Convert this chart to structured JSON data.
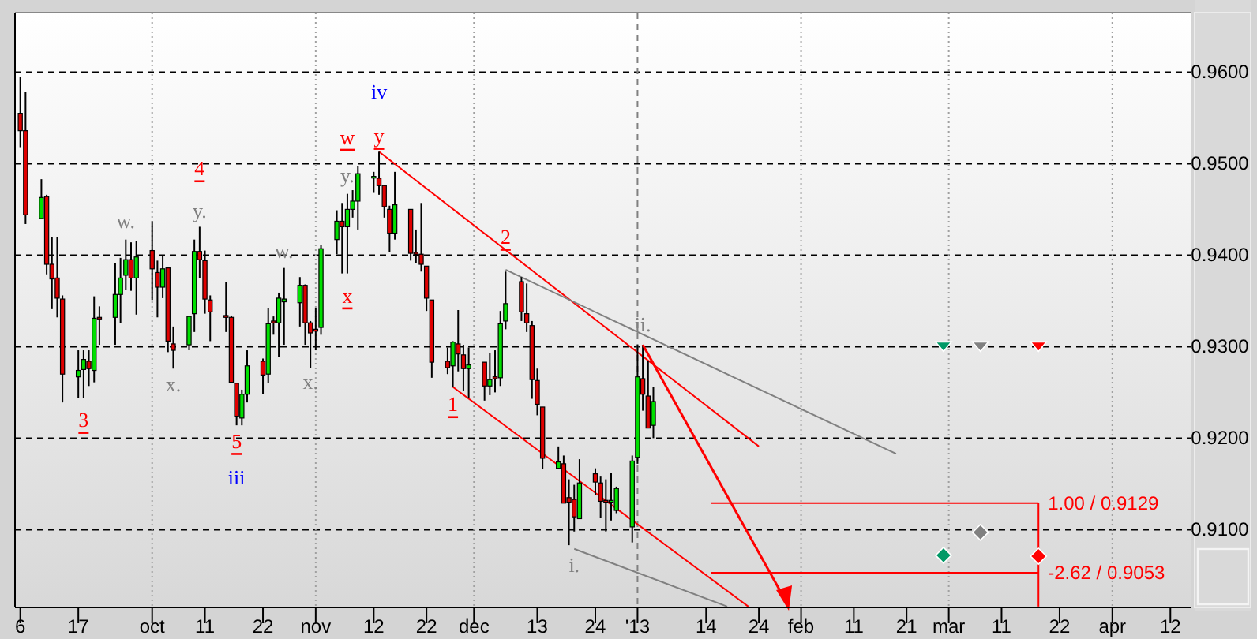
{
  "chart_data": {
    "type": "candlestick",
    "x": [
      "2012-09-06",
      "2012-09-07",
      "2012-09-10",
      "2012-09-11",
      "2012-09-12",
      "2012-09-13",
      "2012-09-14",
      "2012-09-17",
      "2012-09-18",
      "2012-09-19",
      "2012-09-20",
      "2012-09-21",
      "2012-09-24",
      "2012-09-25",
      "2012-09-26",
      "2012-09-27",
      "2012-09-28",
      "2012-10-01",
      "2012-10-02",
      "2012-10-03",
      "2012-10-04",
      "2012-10-05",
      "2012-10-08",
      "2012-10-09",
      "2012-10-10",
      "2012-10-11",
      "2012-10-12",
      "2012-10-15",
      "2012-10-16",
      "2012-10-17",
      "2012-10-18",
      "2012-10-19",
      "2012-10-22",
      "2012-10-23",
      "2012-10-24",
      "2012-10-25",
      "2012-10-26",
      "2012-10-29",
      "2012-10-30",
      "2012-10-31",
      "2012-11-01",
      "2012-11-02",
      "2012-11-05",
      "2012-11-06",
      "2012-11-07",
      "2012-11-08",
      "2012-11-09",
      "2012-11-12",
      "2012-11-13",
      "2012-11-14",
      "2012-11-15",
      "2012-11-16",
      "2012-11-19",
      "2012-11-20",
      "2012-11-21",
      "2012-11-22",
      "2012-11-23",
      "2012-11-26",
      "2012-11-27",
      "2012-11-28",
      "2012-11-29",
      "2012-11-30",
      "2012-12-03",
      "2012-12-04",
      "2012-12-05",
      "2012-12-06",
      "2012-12-07",
      "2012-12-10",
      "2012-12-11",
      "2012-12-12",
      "2012-12-13",
      "2012-12-14",
      "2012-12-17",
      "2012-12-18",
      "2012-12-19",
      "2012-12-20",
      "2012-12-21",
      "2012-12-24",
      "2012-12-25",
      "2012-12-26",
      "2012-12-27",
      "2012-12-28",
      "2012-12-31",
      "2013-01-01",
      "2013-01-02",
      "2013-01-03",
      "2013-01-04"
    ],
    "ohlc": [
      [
        0.9555,
        0.9595,
        0.9518,
        0.9536
      ],
      [
        0.9536,
        0.9578,
        0.9434,
        0.9444
      ],
      [
        0.944,
        0.9483,
        0.944,
        0.9463
      ],
      [
        0.9464,
        0.9466,
        0.9379,
        0.939
      ],
      [
        0.939,
        0.942,
        0.9341,
        0.9374
      ],
      [
        0.9375,
        0.942,
        0.9332,
        0.9353
      ],
      [
        0.9352,
        0.9356,
        0.9239,
        0.927
      ],
      [
        0.9267,
        0.9296,
        0.9244,
        0.9274
      ],
      [
        0.9275,
        0.9296,
        0.9244,
        0.9286
      ],
      [
        0.9284,
        0.9296,
        0.9257,
        0.9276
      ],
      [
        0.9274,
        0.9355,
        0.9261,
        0.9331
      ],
      [
        0.9332,
        0.9344,
        0.9302,
        0.9331
      ],
      [
        0.9332,
        0.9391,
        0.9302,
        0.9357
      ],
      [
        0.9357,
        0.9397,
        0.9326,
        0.9375
      ],
      [
        0.9378,
        0.9417,
        0.9362,
        0.9395
      ],
      [
        0.9395,
        0.9414,
        0.9361,
        0.9375
      ],
      [
        0.9375,
        0.9415,
        0.9335,
        0.9398
      ],
      [
        0.9405,
        0.9437,
        0.9351,
        0.9385
      ],
      [
        0.9381,
        0.9394,
        0.9332,
        0.9365
      ],
      [
        0.9365,
        0.9399,
        0.9353,
        0.9385
      ],
      [
        0.9386,
        0.9386,
        0.9294,
        0.9306
      ],
      [
        0.9303,
        0.9322,
        0.9276,
        0.9296
      ],
      [
        0.9302,
        0.9334,
        0.9296,
        0.9333
      ],
      [
        0.9336,
        0.9417,
        0.9316,
        0.9404
      ],
      [
        0.9404,
        0.9431,
        0.9375,
        0.9395
      ],
      [
        0.9394,
        0.9405,
        0.9336,
        0.9352
      ],
      [
        0.9351,
        0.9356,
        0.9306,
        0.9338
      ],
      [
        0.9334,
        0.9371,
        0.9316,
        0.9332
      ],
      [
        0.9332,
        0.9334,
        0.9261,
        0.9261
      ],
      [
        0.926,
        0.926,
        0.9214,
        0.9224
      ],
      [
        0.9222,
        0.9253,
        0.9214,
        0.9248
      ],
      [
        0.9248,
        0.9296,
        0.9239,
        0.9279
      ],
      [
        0.9284,
        0.9287,
        0.9248,
        0.9269
      ],
      [
        0.927,
        0.9342,
        0.926,
        0.9325
      ],
      [
        0.9328,
        0.9333,
        0.9313,
        0.9326
      ],
      [
        0.9326,
        0.9359,
        0.9289,
        0.9353
      ],
      [
        0.9349,
        0.9386,
        0.9302,
        0.9352
      ],
      [
        0.9348,
        0.9376,
        0.9322,
        0.9367
      ],
      [
        0.9367,
        0.9368,
        0.9302,
        0.9326
      ],
      [
        0.9326,
        0.9328,
        0.9277,
        0.9315
      ],
      [
        0.9319,
        0.9342,
        0.9296,
        0.9317
      ],
      [
        0.9321,
        0.9411,
        0.9313,
        0.9407
      ],
      [
        0.9417,
        0.9449,
        0.9401,
        0.9437
      ],
      [
        0.9437,
        0.9457,
        0.938,
        0.9431
      ],
      [
        0.9431,
        0.9467,
        0.938,
        0.945
      ],
      [
        0.945,
        0.9471,
        0.9441,
        0.9459
      ],
      [
        0.9459,
        0.9497,
        0.9428,
        0.9489
      ],
      [
        0.9485,
        0.9491,
        0.9468,
        0.9486
      ],
      [
        0.9484,
        0.9513,
        0.9466,
        0.9476
      ],
      [
        0.9476,
        0.9476,
        0.9441,
        0.9453
      ],
      [
        0.945,
        0.9454,
        0.9403,
        0.9424
      ],
      [
        0.9424,
        0.9491,
        0.9417,
        0.9455
      ],
      [
        0.945,
        0.945,
        0.9394,
        0.9402
      ],
      [
        0.9403,
        0.9428,
        0.9391,
        0.9401
      ],
      [
        0.9401,
        0.9457,
        0.9382,
        0.939
      ],
      [
        0.9388,
        0.9388,
        0.9339,
        0.9353
      ],
      [
        0.9351,
        0.9351,
        0.9266,
        0.9283
      ],
      [
        0.9284,
        0.9299,
        0.927,
        0.9277
      ],
      [
        0.9279,
        0.9306,
        0.9256,
        0.9305
      ],
      [
        0.9303,
        0.934,
        0.9273,
        0.9292
      ],
      [
        0.9291,
        0.9302,
        0.9252,
        0.9276
      ],
      [
        0.9276,
        0.9299,
        0.9244,
        0.928
      ],
      [
        0.9283,
        0.9283,
        0.9241,
        0.9257
      ],
      [
        0.9257,
        0.9293,
        0.9247,
        0.9264
      ],
      [
        0.9267,
        0.9296,
        0.925,
        0.9265
      ],
      [
        0.9266,
        0.9339,
        0.9257,
        0.9325
      ],
      [
        0.9328,
        0.9382,
        0.9319,
        0.9347
      ],
      [
        0.9371,
        0.9376,
        0.9328,
        0.9338
      ],
      [
        0.9336,
        0.9369,
        0.9316,
        0.9326
      ],
      [
        0.9323,
        0.9328,
        0.9243,
        0.9264
      ],
      [
        0.9263,
        0.9276,
        0.9225,
        0.9237
      ],
      [
        0.9234,
        0.9234,
        0.9166,
        0.9178
      ],
      [
        0.9167,
        0.9191,
        0.9167,
        0.9174
      ],
      [
        0.9172,
        0.9181,
        0.9129,
        0.9129
      ],
      [
        0.9135,
        0.9155,
        0.9083,
        0.913
      ],
      [
        0.9133,
        0.9149,
        0.9098,
        0.9114
      ],
      [
        0.9112,
        0.9177,
        0.9112,
        0.9151
      ],
      [
        0.9161,
        0.9167,
        0.9138,
        0.9152
      ],
      [
        0.9151,
        0.9158,
        0.9113,
        0.9131
      ],
      [
        0.9132,
        0.9155,
        0.9098,
        0.913
      ],
      [
        0.913,
        0.9162,
        0.911,
        0.9132
      ],
      [
        0.9121,
        0.9147,
        0.9118,
        0.9145
      ],
      [
        0.9103,
        0.9181,
        0.9086,
        0.9175
      ],
      [
        0.9179,
        0.9302,
        0.9172,
        0.9267
      ],
      [
        0.9265,
        0.9302,
        0.923,
        0.9248
      ],
      [
        0.9246,
        0.9284,
        0.9211,
        0.9211
      ],
      [
        0.9214,
        0.9256,
        0.92,
        0.924
      ]
    ],
    "series": [
      {
        "type": "line",
        "color": "#ff0000",
        "x": [
          "2012-11-13",
          "2013-01-24"
        ],
        "values": [
          0.9513,
          0.9191
        ]
      },
      {
        "type": "line",
        "color": "#ff0000",
        "x": [
          "2012-11-27",
          "2013-01-22"
        ],
        "values": [
          0.9256,
          0.9016
        ]
      },
      {
        "type": "line",
        "color": "#808080",
        "x": [
          "2012-12-07",
          "2013-02-19"
        ],
        "values": [
          0.9384,
          0.9183
        ]
      },
      {
        "type": "line",
        "color": "#808080",
        "x": [
          "2012-12-20",
          "2013-01-18"
        ],
        "values": [
          0.9079,
          0.9016
        ]
      },
      {
        "type": "line",
        "color": "#ff0000",
        "x": [
          "2013-01-15",
          "2013-03-18"
        ],
        "values": [
          0.9129,
          0.9129
        ]
      },
      {
        "type": "line",
        "color": "#ff0000",
        "x": [
          "2013-01-15",
          "2013-03-18"
        ],
        "values": [
          0.9053,
          0.9053
        ]
      },
      {
        "type": "line",
        "color": "#ff0000",
        "x": [
          "2013-03-18",
          "2013-03-18"
        ],
        "values": [
          0.9129,
          0.9016
        ]
      },
      {
        "type": "scatter",
        "marker": "triangle",
        "x": [
          "2013-02-28",
          "2013-03-07",
          "2013-03-18"
        ],
        "values": [
          0.93,
          0.93,
          0.93
        ],
        "colors": [
          "#009966",
          "#808080",
          "#ff0000"
        ]
      },
      {
        "type": "scatter",
        "marker": "diamond",
        "x": [
          "2013-02-28",
          "2013-03-07",
          "2013-03-18"
        ],
        "values": [
          0.9072,
          0.9097,
          0.9071
        ],
        "colors": [
          "#009966",
          "#808080",
          "#ff0000"
        ]
      }
    ],
    "annotations": [
      "3",
      "4",
      "5",
      "iii",
      "w.",
      "y.",
      "x.",
      "w.",
      "x.",
      "y.",
      "x",
      "w",
      "y",
      "iv",
      "1",
      "2",
      "i.",
      "ii.",
      {
        "text": "1.00 / 0.9129",
        "x": "2013-03-18",
        "y": 0.9129
      },
      {
        "text": "-2.62 / 0.9053",
        "x": "2013-03-18",
        "y": 0.9053
      }
    ],
    "xlim": [
      "2012-09-05",
      "2013-04-16"
    ],
    "xticks": [
      {
        "value": "2012-09-06",
        "label": "6"
      },
      {
        "value": "2012-09-17",
        "label": "17"
      },
      {
        "value": "2012-10-01",
        "label": "oct"
      },
      {
        "value": "2012-10-11",
        "label": "11"
      },
      {
        "value": "2012-10-22",
        "label": "22"
      },
      {
        "value": "2012-11-01",
        "label": "nov"
      },
      {
        "value": "2012-11-12",
        "label": "12"
      },
      {
        "value": "2012-11-22",
        "label": "22"
      },
      {
        "value": "2012-12-01",
        "label": "dec"
      },
      {
        "value": "2012-12-13",
        "label": "13"
      },
      {
        "value": "2012-12-24",
        "label": "24"
      },
      {
        "value": "2013-01-01",
        "label": "'13"
      },
      {
        "value": "2013-01-14",
        "label": "14"
      },
      {
        "value": "2013-01-24",
        "label": "24"
      },
      {
        "value": "2013-02-01",
        "label": "feb"
      },
      {
        "value": "2013-02-11",
        "label": "11"
      },
      {
        "value": "2013-02-21",
        "label": "21"
      },
      {
        "value": "2013-03-01",
        "label": "mar"
      },
      {
        "value": "2013-03-11",
        "label": "11"
      },
      {
        "value": "2013-03-22",
        "label": "22"
      },
      {
        "value": "2013-04-01",
        "label": "apr"
      },
      {
        "value": "2013-04-12",
        "label": "12"
      }
    ],
    "ylim": [
      0.9015,
      0.9665
    ],
    "yticks": [
      {
        "value": 0.91,
        "label": "0.9100"
      },
      {
        "value": 0.92,
        "label": "0.9200"
      },
      {
        "value": 0.93,
        "label": "0.9300"
      },
      {
        "value": 0.94,
        "label": "0.9400"
      },
      {
        "value": 0.95,
        "label": "0.9500"
      },
      {
        "value": 0.96,
        "label": "0.9600"
      }
    ],
    "grid": "y",
    "ref_lines": [
      {
        "axis": "x",
        "value": "2012-10-01",
        "color": "#a0a0a0",
        "line_style": "dotted"
      },
      {
        "axis": "x",
        "value": "2012-11-01",
        "color": "#a0a0a0",
        "line_style": "dotted"
      },
      {
        "axis": "x",
        "value": "2012-12-01",
        "color": "#a0a0a0",
        "line_style": "dotted"
      },
      {
        "axis": "x",
        "value": "2013-01-01",
        "color": "#808080",
        "line_style": "dashed"
      },
      {
        "axis": "x",
        "value": "2013-02-01",
        "color": "#a0a0a0",
        "line_style": "dotted"
      },
      {
        "axis": "x",
        "value": "2013-03-01",
        "color": "#a0a0a0",
        "line_style": "dotted"
      },
      {
        "axis": "x",
        "value": "2013-04-01",
        "color": "#a0a0a0",
        "line_style": "dotted"
      }
    ]
  }
}
